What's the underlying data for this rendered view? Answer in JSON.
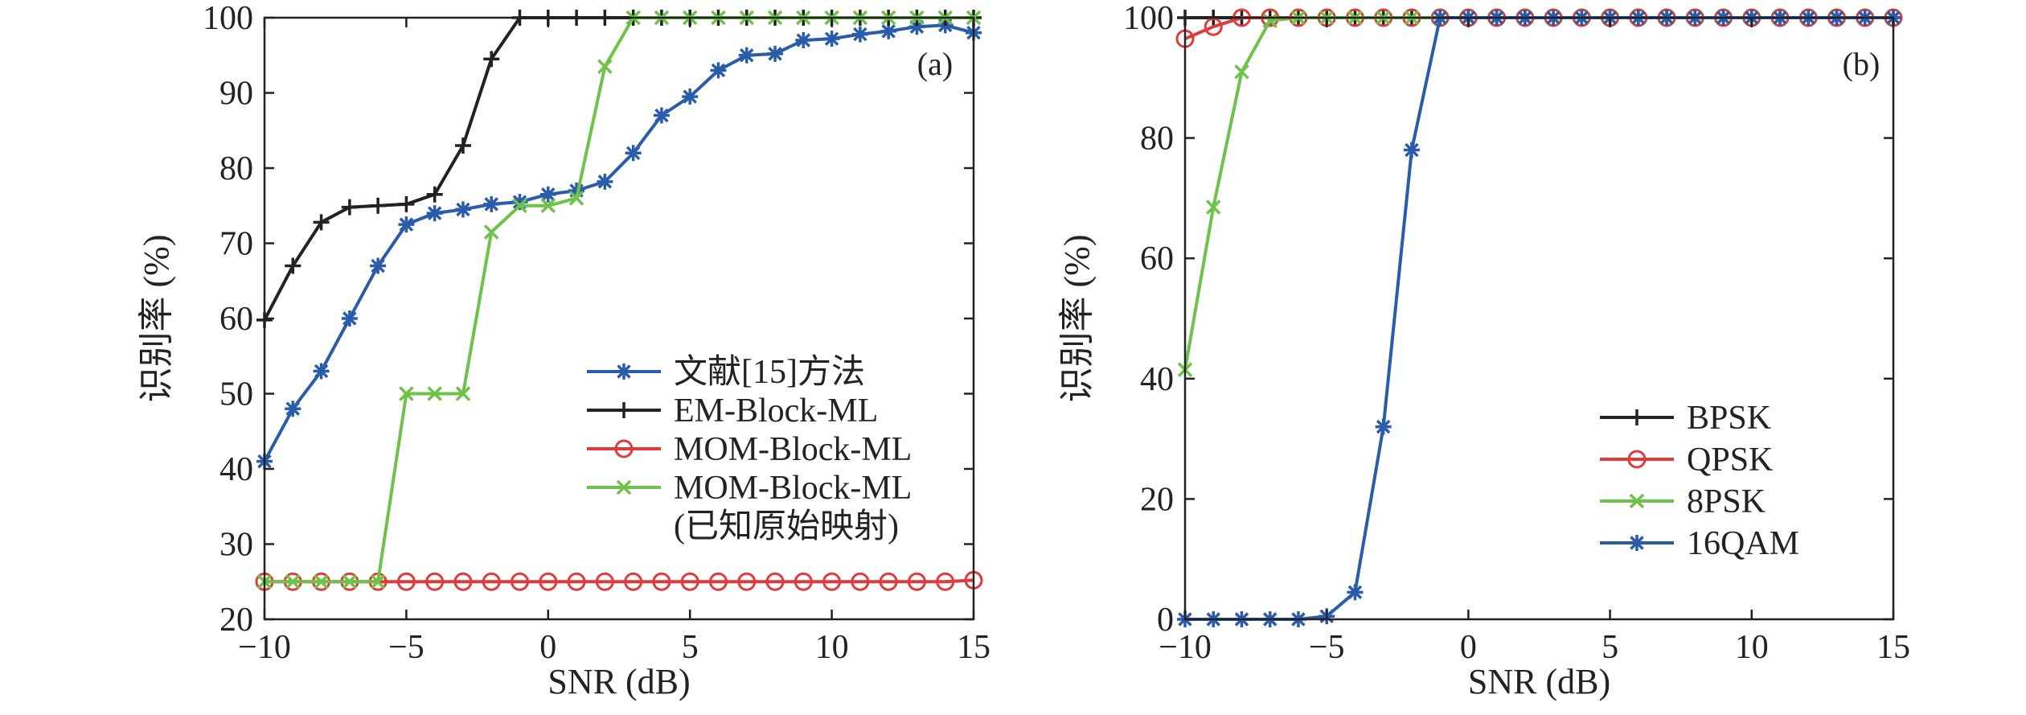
{
  "chart_data": [
    {
      "type": "line",
      "panel_tag": "(a)",
      "xlabel": "SNR (dB)",
      "ylabel": "识别率 (%)",
      "xlim": [
        -10,
        15
      ],
      "ylim": [
        20,
        100
      ],
      "xticks": [
        "−10",
        "−5",
        "0",
        "5",
        "10",
        "15"
      ],
      "xtick_values": [
        -10,
        -5,
        0,
        5,
        10,
        15
      ],
      "yticks": [
        "20",
        "30",
        "40",
        "50",
        "60",
        "70",
        "80",
        "90",
        "100"
      ],
      "ytick_values": [
        20,
        30,
        40,
        50,
        60,
        70,
        80,
        90,
        100
      ],
      "grid": false,
      "legend_position": "lower-right",
      "x": [
        -10,
        -9,
        -8,
        -7,
        -6,
        -5,
        -4,
        -3,
        -2,
        -1,
        0,
        1,
        2,
        3,
        4,
        5,
        6,
        7,
        8,
        9,
        10,
        11,
        12,
        13,
        14,
        15
      ],
      "series": [
        {
          "name": "文献[15]方法",
          "color": "#2a5caa",
          "marker": "asterisk",
          "values": [
            41,
            48,
            53,
            60,
            67,
            72.5,
            74,
            74.5,
            75.2,
            75.5,
            76.5,
            77,
            78.2,
            82,
            87,
            89.5,
            93,
            95,
            95.2,
            97,
            97.2,
            97.8,
            98.2,
            98.8,
            99,
            98
          ]
        },
        {
          "name": "EM-Block-ML",
          "color": "#222222",
          "marker": "plus",
          "values": [
            59.8,
            67,
            72.8,
            74.8,
            75,
            75.2,
            76.5,
            83,
            94.5,
            100,
            100,
            100,
            100,
            100,
            100,
            100,
            100,
            100,
            100,
            100,
            100,
            100,
            100,
            100,
            100,
            100
          ]
        },
        {
          "name": "MOM-Block-ML",
          "color": "#e03a3a",
          "marker": "circle",
          "values": [
            25,
            25,
            25,
            25,
            25,
            25,
            25,
            25,
            25,
            25,
            25,
            25,
            25,
            25,
            25,
            25,
            25,
            25,
            25,
            25,
            25,
            25,
            25,
            25,
            25,
            25.2
          ]
        },
        {
          "name": "MOM-Block-ML",
          "name_line2": "(已知原始映射)",
          "color": "#6ec24a",
          "marker": "x",
          "values": [
            25,
            25,
            25,
            25,
            25,
            50,
            50,
            50,
            71.5,
            75,
            75,
            76,
            93.5,
            100,
            100,
            100,
            100,
            100,
            100,
            100,
            100,
            100,
            100,
            100,
            100,
            100
          ]
        }
      ]
    },
    {
      "type": "line",
      "panel_tag": "(b)",
      "xlabel": "SNR (dB)",
      "ylabel": "识别率 (%)",
      "xlim": [
        -10,
        15
      ],
      "ylim": [
        0,
        100
      ],
      "xticks": [
        "−10",
        "−5",
        "0",
        "5",
        "10",
        "15"
      ],
      "xtick_values": [
        -10,
        -5,
        0,
        5,
        10,
        15
      ],
      "yticks": [
        "0",
        "20",
        "40",
        "60",
        "80",
        "100"
      ],
      "ytick_values": [
        0,
        20,
        40,
        60,
        80,
        100
      ],
      "grid": false,
      "legend_position": "lower-right",
      "x": [
        -10,
        -9,
        -8,
        -7,
        -6,
        -5,
        -4,
        -3,
        -2,
        -1,
        0,
        1,
        2,
        3,
        4,
        5,
        6,
        7,
        8,
        9,
        10,
        11,
        12,
        13,
        14,
        15
      ],
      "series": [
        {
          "name": "BPSK",
          "color": "#222222",
          "marker": "plus",
          "values": [
            100,
            100,
            100,
            100,
            100,
            100,
            100,
            100,
            100,
            100,
            100,
            100,
            100,
            100,
            100,
            100,
            100,
            100,
            100,
            100,
            100,
            100,
            100,
            100,
            100,
            100
          ]
        },
        {
          "name": "QPSK",
          "color": "#e03a3a",
          "marker": "circle",
          "values": [
            96.5,
            98.5,
            100,
            100,
            100,
            100,
            100,
            100,
            100,
            100,
            100,
            100,
            100,
            100,
            100,
            100,
            100,
            100,
            100,
            100,
            100,
            100,
            100,
            100,
            100,
            100
          ]
        },
        {
          "name": "8PSK",
          "color": "#6ec24a",
          "marker": "x",
          "values": [
            41.5,
            68.5,
            91,
            99.5,
            100,
            100,
            100,
            100,
            100,
            100,
            100,
            100,
            100,
            100,
            100,
            100,
            100,
            100,
            100,
            100,
            100,
            100,
            100,
            100,
            100,
            100
          ]
        },
        {
          "name": "16QAM",
          "color": "#2a5caa",
          "marker": "asterisk",
          "values": [
            0,
            0,
            0,
            0,
            0,
            0.5,
            4.5,
            32,
            78,
            100,
            100,
            100,
            100,
            100,
            100,
            100,
            100,
            100,
            100,
            100,
            100,
            100,
            100,
            100,
            100,
            100
          ]
        }
      ]
    }
  ]
}
